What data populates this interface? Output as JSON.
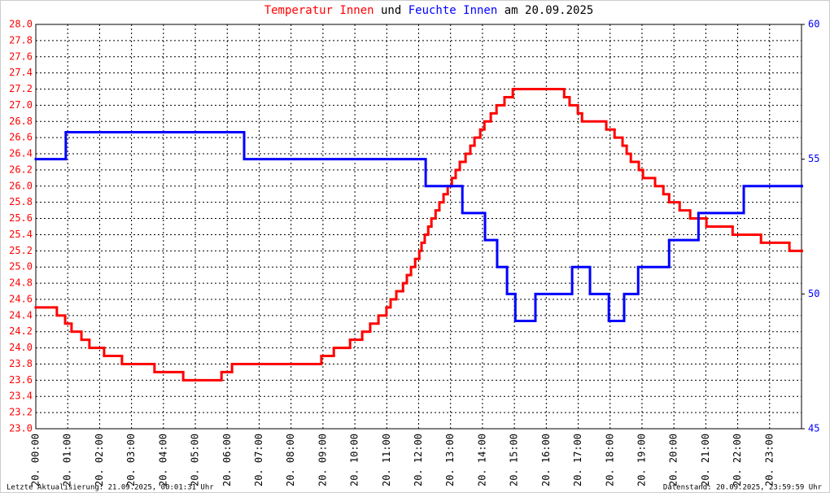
{
  "chart_data": {
    "type": "line",
    "step": "post",
    "title_connector": "und",
    "title_suffix": "am 20.09.2025",
    "footer_left": "Letzte Aktualisierung: 21.09.2025, 00:01:31 Uhr",
    "footer_right": "Datenstand: 20.09.2025, 23:59:59 Uhr",
    "grid": true,
    "xlim": [
      0,
      24
    ],
    "xticks": [
      {
        "value": 0,
        "label": "20. 00:00"
      },
      {
        "value": 1,
        "label": "20. 01:00"
      },
      {
        "value": 2,
        "label": "20. 02:00"
      },
      {
        "value": 3,
        "label": "20. 03:00"
      },
      {
        "value": 4,
        "label": "20. 04:00"
      },
      {
        "value": 5,
        "label": "20. 05:00"
      },
      {
        "value": 6,
        "label": "20. 06:00"
      },
      {
        "value": 7,
        "label": "20. 07:00"
      },
      {
        "value": 8,
        "label": "20. 08:00"
      },
      {
        "value": 9,
        "label": "20. 09:00"
      },
      {
        "value": 10,
        "label": "20. 10:00"
      },
      {
        "value": 11,
        "label": "20. 11:00"
      },
      {
        "value": 12,
        "label": "20. 12:00"
      },
      {
        "value": 13,
        "label": "20. 13:00"
      },
      {
        "value": 14,
        "label": "20. 14:00"
      },
      {
        "value": 15,
        "label": "20. 15:00"
      },
      {
        "value": 16,
        "label": "20. 16:00"
      },
      {
        "value": 17,
        "label": "20. 17:00"
      },
      {
        "value": 18,
        "label": "20. 18:00"
      },
      {
        "value": 19,
        "label": "20. 19:00"
      },
      {
        "value": 20,
        "label": "20. 20:00"
      },
      {
        "value": 21,
        "label": "20. 21:00"
      },
      {
        "value": 22,
        "label": "20. 22:00"
      },
      {
        "value": 23,
        "label": "20. 23:00"
      }
    ],
    "ylim": [
      23,
      28
    ],
    "yticks": [
      {
        "value": 23,
        "label": "23.0"
      },
      23.2,
      23.4,
      23.6,
      23.8,
      {
        "value": 24,
        "label": "24.0"
      },
      24.2,
      24.4,
      24.6,
      24.8,
      {
        "value": 25,
        "label": "25.0"
      },
      25.2,
      25.4,
      25.6,
      25.8,
      {
        "value": 26,
        "label": "26.0"
      },
      26.2,
      26.4,
      26.6,
      26.8,
      {
        "value": 27,
        "label": "27.0"
      },
      27.2,
      27.4,
      27.6,
      27.8,
      {
        "value": 28,
        "label": "28.0"
      }
    ],
    "y2lim": [
      45,
      60
    ],
    "y2ticks": [
      45,
      50,
      55,
      60
    ],
    "series": [
      {
        "name": "Temperatur Innen",
        "color": "#ff0000",
        "x": [
          0,
          0.66,
          0.92,
          1.12,
          1.43,
          1.68,
          2.14,
          2.7,
          3.72,
          4.62,
          5.82,
          6.15,
          8.95,
          9.34,
          9.85,
          10.23,
          10.48,
          10.74,
          10.99,
          11.12,
          11.3,
          11.51,
          11.63,
          11.76,
          11.89,
          12.02,
          12.09,
          12.19,
          12.3,
          12.4,
          12.53,
          12.65,
          12.78,
          12.91,
          13.04,
          13.16,
          13.29,
          13.47,
          13.62,
          13.75,
          13.93,
          14.06,
          14.26,
          14.44,
          14.69,
          14.95,
          16.56,
          16.73,
          16.99,
          17.12,
          17.88,
          18.14,
          18.39,
          18.52,
          18.65,
          18.9,
          19.03,
          19.41,
          19.67,
          19.85,
          20.18,
          20.51,
          21.02,
          21.84,
          22.73,
          23.62,
          24
        ],
        "values": [
          24.5,
          24.4,
          24.3,
          24.2,
          24.1,
          24.0,
          23.9,
          23.8,
          23.7,
          23.6,
          23.7,
          23.8,
          23.9,
          24.0,
          24.1,
          24.2,
          24.3,
          24.4,
          24.5,
          24.6,
          24.7,
          24.8,
          24.9,
          25.0,
          25.1,
          25.2,
          25.3,
          25.4,
          25.5,
          25.6,
          25.7,
          25.8,
          25.9,
          26.0,
          26.1,
          26.2,
          26.3,
          26.4,
          26.5,
          26.6,
          26.7,
          26.8,
          26.9,
          27.0,
          27.1,
          27.2,
          27.1,
          27.0,
          26.9,
          26.8,
          26.7,
          26.6,
          26.5,
          26.4,
          26.3,
          26.2,
          26.1,
          26.0,
          25.9,
          25.8,
          25.7,
          25.6,
          25.5,
          25.4,
          25.3,
          25.2,
          25.2
        ]
      },
      {
        "name": "Feuchte Innen",
        "color": "#0000ff",
        "axis": "y2",
        "x": [
          0,
          0.94,
          6.53,
          12.22,
          13.37,
          14.08,
          14.46,
          14.77,
          15.03,
          15.66,
          16.81,
          17.37,
          17.96,
          18.44,
          18.88,
          19.85,
          20.77,
          22.19,
          24
        ],
        "values": [
          55,
          56,
          55,
          54,
          53,
          52,
          51,
          50,
          49,
          50,
          51,
          50,
          49,
          50,
          51,
          52,
          53,
          54,
          54
        ]
      }
    ]
  }
}
